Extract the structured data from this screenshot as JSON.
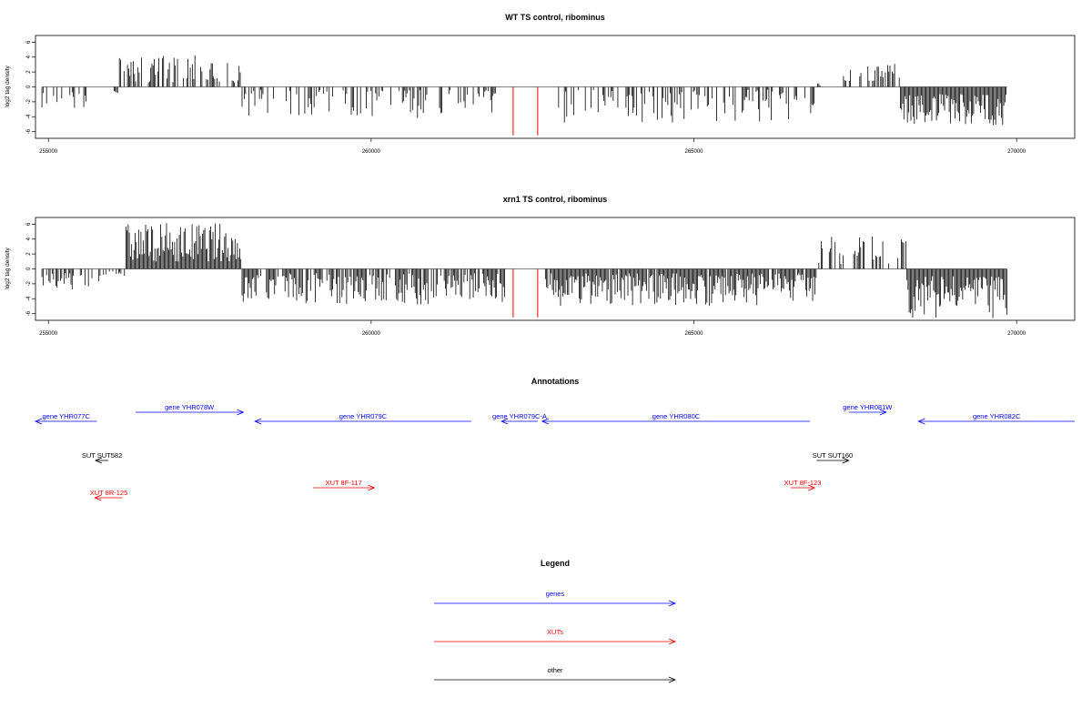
{
  "chart_data": [
    {
      "type": "bar",
      "title": "WT TS control, ribominus",
      "ylabel": "log2 tag density",
      "xlim": [
        254800,
        270900
      ],
      "ylim": [
        -6.9,
        6.9
      ],
      "xticks": [
        255000,
        260000,
        265000,
        270000
      ],
      "yticks": [
        6,
        4,
        2,
        0,
        -2,
        -4,
        -6
      ],
      "data_range": [
        254900,
        269850
      ],
      "highlight_color": "#ff0000",
      "highlight_bars": [
        {
          "x": 262200,
          "value": -6.5
        },
        {
          "x": 262580,
          "value": -6.5
        }
      ],
      "regions": [
        {
          "start": 254900,
          "end": 255600,
          "sign": -1,
          "min": 0.5,
          "max": 3.0,
          "density": 0.4
        },
        {
          "start": 256000,
          "end": 256100,
          "sign": -1,
          "min": 0.5,
          "max": 1.2,
          "density": 0.6
        },
        {
          "start": 256100,
          "end": 258000,
          "sign": 1,
          "min": 0.6,
          "max": 4.3,
          "density": 0.55
        },
        {
          "start": 258000,
          "end": 262000,
          "sign": -1,
          "min": 0.4,
          "max": 4.2,
          "density": 0.45
        },
        {
          "start": 262850,
          "end": 266900,
          "sign": -1,
          "min": 0.4,
          "max": 4.8,
          "density": 0.45
        },
        {
          "start": 266900,
          "end": 267100,
          "sign": 1,
          "min": 0.2,
          "max": 0.8,
          "density": 0.3
        },
        {
          "start": 267300,
          "end": 268200,
          "sign": 1,
          "min": 0.8,
          "max": 3.2,
          "density": 0.5
        },
        {
          "start": 268200,
          "end": 269850,
          "sign": -1,
          "min": 1.0,
          "max": 5.2,
          "density": 1.0
        }
      ]
    },
    {
      "type": "bar",
      "title": "xrn1 TS control, ribominus",
      "ylabel": "log2 tag density",
      "xlim": [
        254800,
        270900
      ],
      "ylim": [
        -6.9,
        6.9
      ],
      "xticks": [
        255000,
        260000,
        265000,
        270000
      ],
      "yticks": [
        6,
        4,
        2,
        0,
        -2,
        -4,
        -6
      ],
      "data_range": [
        254900,
        269850
      ],
      "highlight_color": "#ff0000",
      "highlight_bars": [
        {
          "x": 262200,
          "value": -6.5
        },
        {
          "x": 262580,
          "value": -6.5
        }
      ],
      "regions": [
        {
          "start": 254900,
          "end": 255800,
          "sign": -1,
          "min": 0.5,
          "max": 2.8,
          "density": 0.5
        },
        {
          "start": 255800,
          "end": 256200,
          "sign": -1,
          "min": 0.3,
          "max": 1.0,
          "density": 0.4
        },
        {
          "start": 256200,
          "end": 258000,
          "sign": 1,
          "min": 1.0,
          "max": 6.2,
          "density": 1.0
        },
        {
          "start": 258000,
          "end": 262100,
          "sign": -1,
          "min": 0.6,
          "max": 4.8,
          "density": 0.8
        },
        {
          "start": 262700,
          "end": 266900,
          "sign": -1,
          "min": 0.6,
          "max": 5.0,
          "density": 0.95
        },
        {
          "start": 266900,
          "end": 268300,
          "sign": 1,
          "min": 0.4,
          "max": 4.4,
          "density": 0.55
        },
        {
          "start": 268300,
          "end": 269850,
          "sign": -1,
          "min": 1.0,
          "max": 6.6,
          "density": 1.0
        }
      ]
    }
  ],
  "annotations": {
    "title": "Annotations",
    "features": [
      {
        "label": "gene YHR077C",
        "start": 254800,
        "end": 255750,
        "strand": "-",
        "kind": "gene",
        "row": 0
      },
      {
        "label": "gene YHR078W",
        "start": 256350,
        "end": 258020,
        "strand": "+",
        "kind": "gene",
        "row": -1
      },
      {
        "label": "gene YHR079C",
        "start": 258200,
        "end": 261550,
        "strand": "-",
        "kind": "gene",
        "row": 0
      },
      {
        "label": "gene YHR079C-A",
        "start": 262020,
        "end": 262580,
        "strand": "-",
        "kind": "gene",
        "row": 0
      },
      {
        "label": "gene YHR080C",
        "start": 262650,
        "end": 266800,
        "strand": "-",
        "kind": "gene",
        "row": 0
      },
      {
        "label": "gene YHR081W",
        "start": 267400,
        "end": 267980,
        "strand": "+",
        "kind": "gene",
        "row": -1
      },
      {
        "label": "gene YHR082C",
        "start": 268480,
        "end": 270900,
        "strand": "-",
        "kind": "gene",
        "row": 0
      },
      {
        "label": "SUT SUT582",
        "start": 255730,
        "end": 255930,
        "strand": "-",
        "kind": "other",
        "row": 1
      },
      {
        "label": "SUT SUT160",
        "start": 266900,
        "end": 267400,
        "strand": "+",
        "kind": "other",
        "row": 1
      },
      {
        "label": "XUT 8F-117",
        "start": 259100,
        "end": 260050,
        "strand": "+",
        "kind": "xut",
        "row": 2
      },
      {
        "label": "XUT 8R-125",
        "start": 255720,
        "end": 256150,
        "strand": "-",
        "kind": "xut",
        "row": 3
      },
      {
        "label": "XUT 8F-123",
        "start": 266500,
        "end": 266870,
        "strand": "+",
        "kind": "xut",
        "row": 2
      }
    ]
  },
  "legend": {
    "title": "Legend",
    "items": [
      {
        "label": "genes",
        "color": "#0000ff"
      },
      {
        "label": "XUTs",
        "color": "#ff0000"
      },
      {
        "label": "other",
        "color": "#000000"
      }
    ]
  },
  "colors": {
    "gene": "#0000ff",
    "xut": "#ff0000",
    "other": "#000000",
    "bars": "#000000",
    "axis": "#000000"
  }
}
